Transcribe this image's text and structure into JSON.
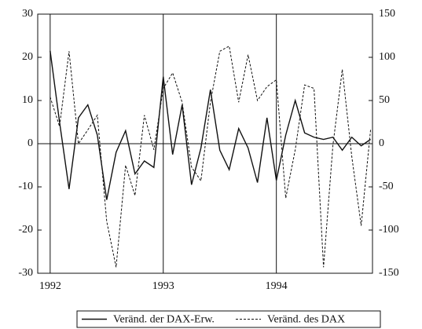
{
  "chart_data": {
    "type": "line",
    "x": [
      1992,
      1992.083,
      1992.167,
      1992.25,
      1992.333,
      1992.417,
      1992.5,
      1992.583,
      1992.667,
      1992.75,
      1992.833,
      1992.917,
      1993,
      1993.083,
      1993.167,
      1993.25,
      1993.333,
      1993.417,
      1993.5,
      1993.583,
      1993.667,
      1993.75,
      1993.833,
      1993.917,
      1994,
      1994.083,
      1994.167,
      1994.25,
      1994.333,
      1994.417,
      1994.5,
      1994.583,
      1994.667,
      1994.75,
      1994.833
    ],
    "series": [
      {
        "name": "Veränd. der DAX-Erw.",
        "color": "#111111",
        "style": "solid",
        "values": [
          21.5,
          5,
          -10.5,
          6,
          9,
          2,
          -13,
          -2,
          3,
          -7,
          -4,
          -5.5,
          15.5,
          -2.5,
          9,
          -9.5,
          -1,
          12.5,
          -1.5,
          -6,
          3.5,
          -1,
          -9,
          6,
          -8.5,
          2,
          10,
          2.5,
          1.5,
          1,
          1.5,
          -1.5,
          1.5,
          -0.5,
          1
        ]
      },
      {
        "name": "Veränd. des DAX",
        "color": "#111111",
        "style": "dashed",
        "axis": "y2",
        "values": [
          54,
          20,
          107,
          0,
          16,
          33,
          -90,
          -143,
          -25,
          -60,
          33,
          -7,
          64,
          82,
          48,
          -27,
          -43,
          48,
          107,
          113,
          48,
          103,
          50,
          66,
          74,
          -63,
          -7,
          68,
          64,
          -143,
          -2,
          86,
          -15,
          -95,
          16
        ]
      }
    ],
    "xlim": [
      1991.89,
      1994.85
    ],
    "xticks": [
      1992,
      1993,
      1994
    ],
    "grid": true,
    "ylim": [
      -30,
      30
    ],
    "yticks": [
      -30,
      -20,
      -10,
      0,
      10,
      20,
      30
    ],
    "y2lim": [
      -150,
      150
    ],
    "y2ticks": [
      -150,
      -100,
      -50,
      0,
      50,
      100,
      150
    ],
    "legend": "bottom"
  }
}
